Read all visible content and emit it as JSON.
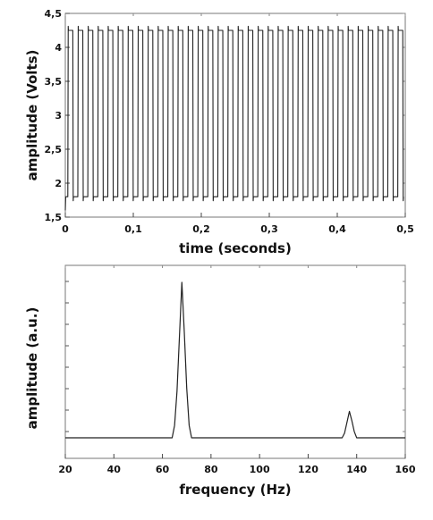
{
  "chart_data": [
    {
      "type": "line",
      "title": "",
      "xlabel": "time (seconds)",
      "ylabel": "amplitude (Volts)",
      "xlim": [
        0,
        0.5
      ],
      "ylim": [
        1.5,
        4.5
      ],
      "x_ticks": [
        0,
        0.1,
        0.2,
        0.3,
        0.4,
        0.5
      ],
      "x_tick_labels": [
        "0",
        "0,1",
        "0,2",
        "0,3",
        "0,4",
        "0,5"
      ],
      "y_ticks": [
        1.5,
        2,
        2.5,
        3,
        3.5,
        4,
        4.5
      ],
      "y_tick_labels": [
        "1,5",
        "2",
        "2,5",
        "3",
        "3,5",
        "4",
        "4,5"
      ],
      "grid": false,
      "series": [
        {
          "waveform": "square",
          "frequency_hz": 68,
          "low_volts": 1.8,
          "high_volts": 4.25,
          "start_volts": 1.6,
          "color": "#222222"
        }
      ]
    },
    {
      "type": "line",
      "title": "",
      "xlabel": "frequency (Hz)",
      "ylabel": "amplitude (a.u.)",
      "xlim": [
        20,
        160
      ],
      "ylim": [
        0,
        1.15
      ],
      "x_ticks": [
        20,
        40,
        60,
        80,
        100,
        120,
        140,
        160
      ],
      "x_tick_labels": [
        "20",
        "40",
        "60",
        "80",
        "100",
        "120",
        "140",
        "160"
      ],
      "y_tick_labels": [],
      "grid": false,
      "series": [
        {
          "x": [
            20,
            64,
            65,
            66,
            67,
            68,
            69,
            70,
            71,
            72,
            134,
            135,
            136,
            137,
            138,
            139,
            140,
            160
          ],
          "y": [
            0.0,
            0.0,
            0.08,
            0.3,
            0.65,
            1.0,
            0.68,
            0.32,
            0.08,
            0.0,
            0.0,
            0.03,
            0.1,
            0.17,
            0.11,
            0.04,
            0.0,
            0.0
          ],
          "color": "#222222"
        }
      ]
    }
  ]
}
